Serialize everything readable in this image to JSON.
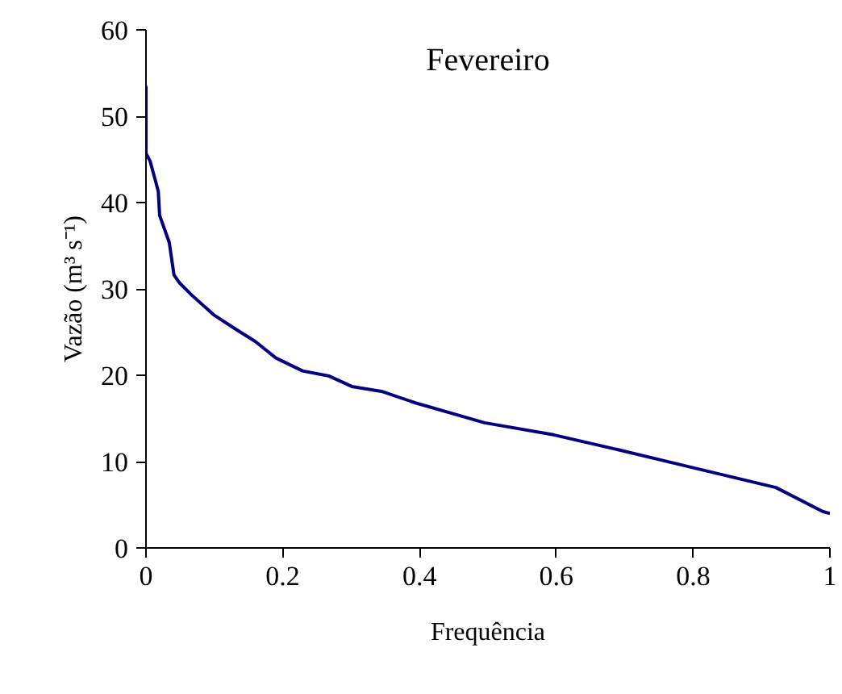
{
  "chart_data": {
    "type": "line",
    "title": "Fevereiro",
    "xlabel": "Frequência",
    "ylabel": "Vazão (m³ s⁻¹)",
    "series": [
      {
        "color": "#000080",
        "x": [
          0,
          0,
          0.006,
          0.018,
          0.02,
          0.034,
          0.041,
          0.049,
          0.068,
          0.099,
          0.13,
          0.16,
          0.19,
          0.229,
          0.268,
          0.301,
          0.346,
          0.394,
          0.495,
          0.596,
          0.689,
          0.789,
          0.921,
          0.99,
          1
        ],
        "values": [
          53.5,
          45.7,
          44.8,
          41.3,
          38.5,
          35.4,
          31.6,
          30.7,
          29.2,
          27.0,
          25.4,
          23.9,
          22.0,
          20.5,
          19.9,
          18.7,
          18.1,
          16.8,
          14.5,
          13.1,
          11.4,
          9.5,
          7.0,
          4.2,
          4.0
        ]
      }
    ],
    "xlim": [
      0,
      1
    ],
    "xticks": [
      0,
      0.2,
      0.4,
      0.6,
      0.8,
      1
    ],
    "ylim": [
      0,
      60
    ],
    "yticks": [
      0,
      10,
      20,
      30,
      40,
      50,
      60
    ],
    "grid": false,
    "marker": "none",
    "line_style": "solid"
  }
}
